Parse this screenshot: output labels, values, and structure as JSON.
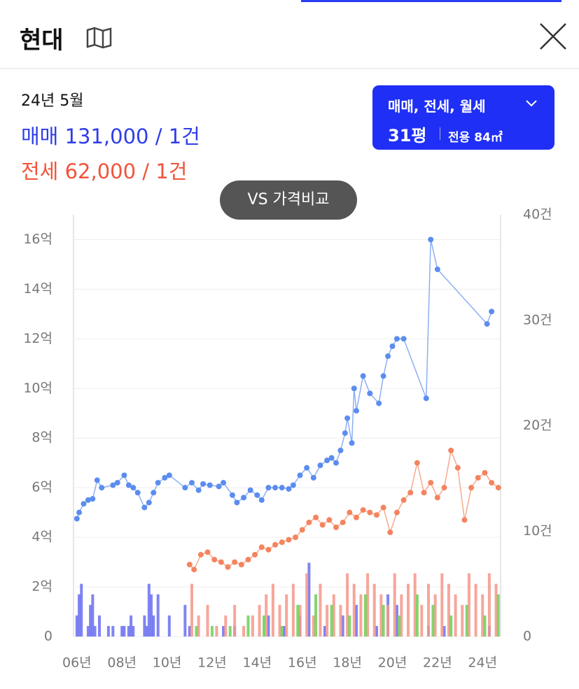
{
  "header": {
    "title": "현대"
  },
  "info": {
    "date": "24년 5월",
    "sale": "매매 131,000 / 1건",
    "jeonse": "전세 62,000 / 1건"
  },
  "filter": {
    "types": "매매, 전세, 월세",
    "size": "31평",
    "area": "전용 84㎡"
  },
  "compare_button": "VS 가격비교",
  "chart_data": {
    "type": "line",
    "xlim": [
      5.85,
      24.8
    ],
    "xticks": [
      {
        "value": 6,
        "label": "06년"
      },
      {
        "value": 8,
        "label": "08년"
      },
      {
        "value": 10,
        "label": "10년"
      },
      {
        "value": 12,
        "label": "12년"
      },
      {
        "value": 14,
        "label": "14년"
      },
      {
        "value": 16,
        "label": "16년"
      },
      {
        "value": 18,
        "label": "18년"
      },
      {
        "value": 20,
        "label": "20년"
      },
      {
        "value": 22,
        "label": "22년"
      },
      {
        "value": 24,
        "label": "24년"
      }
    ],
    "ylim": [
      0,
      17
    ],
    "yticks": [
      0,
      {
        "value": 2,
        "label": "2억"
      },
      {
        "value": 4,
        "label": "4억"
      },
      {
        "value": 6,
        "label": "6억"
      },
      {
        "value": 8,
        "label": "8억"
      },
      {
        "value": 10,
        "label": "10억"
      },
      {
        "value": 12,
        "label": "12억"
      },
      {
        "value": 14,
        "label": "14억"
      },
      {
        "value": 16,
        "label": "16억"
      }
    ],
    "y2lim": [
      0,
      40
    ],
    "y2ticks": [
      0,
      {
        "value": 10,
        "label": "10건"
      },
      {
        "value": 20,
        "label": "20건"
      },
      {
        "value": 30,
        "label": "30건"
      },
      {
        "value": 40,
        "label": "40건"
      }
    ],
    "grid": true,
    "series": [
      {
        "type": "bar",
        "axis": "y2",
        "color": "#6a6ff0",
        "x": [
          6.0,
          6.1,
          6.2,
          6.5,
          6.6,
          6.7,
          6.8,
          7.0,
          7.4,
          7.6,
          8.0,
          8.1,
          8.3,
          8.4,
          8.5,
          9.0,
          9.1,
          9.2,
          9.3,
          9.4,
          9.6,
          10.1,
          10.8,
          11.0,
          12.5,
          13.0,
          14.5,
          15.2,
          15.9,
          16.3,
          17.0,
          17.8,
          18.4,
          19.3,
          19.8,
          20.2,
          21.6,
          22.3,
          24.3
        ],
        "values": [
          2,
          4,
          5,
          1,
          3,
          4,
          1,
          2,
          1,
          1,
          1,
          1,
          1,
          2,
          1,
          2,
          1,
          5,
          4,
          2,
          4,
          2,
          3,
          1,
          1,
          1,
          2,
          1,
          2,
          7,
          1,
          2,
          3,
          1,
          4,
          3,
          1,
          1,
          1
        ]
      },
      {
        "type": "bar",
        "axis": "y2",
        "color": "#f5978a",
        "x": [
          11.1,
          11.4,
          11.8,
          12.2,
          12.6,
          13.0,
          13.4,
          13.8,
          14.1,
          14.4,
          14.7,
          15.0,
          15.3,
          15.6,
          15.9,
          16.2,
          16.5,
          16.8,
          17.1,
          17.4,
          17.7,
          18.0,
          18.3,
          18.6,
          18.9,
          19.2,
          19.5,
          19.8,
          20.1,
          20.4,
          20.7,
          21.0,
          21.3,
          21.6,
          21.9,
          22.2,
          22.5,
          22.8,
          23.1,
          23.4,
          23.7,
          24.0,
          24.3,
          24.6
        ],
        "values": [
          5,
          2,
          3,
          1,
          2,
          3,
          1,
          2,
          3,
          4,
          5,
          3,
          4,
          5,
          3,
          6,
          2,
          5,
          3,
          4,
          3,
          6,
          5,
          4,
          6,
          5,
          4,
          3,
          6,
          4,
          5,
          6,
          3,
          5,
          4,
          6,
          5,
          4,
          3,
          6,
          5,
          4,
          6,
          5
        ]
      },
      {
        "type": "bar",
        "axis": "y2",
        "color": "#6ccf55",
        "x": [
          11.3,
          12.0,
          12.8,
          13.6,
          14.3,
          15.1,
          15.8,
          16.6,
          17.3,
          18.1,
          18.8,
          19.6,
          20.3,
          21.1,
          21.8,
          22.6,
          23.3,
          24.1,
          24.7
        ],
        "values": [
          1,
          1,
          1,
          2,
          2,
          1,
          3,
          4,
          3,
          2,
          4,
          3,
          2,
          4,
          3,
          2,
          3,
          2,
          4
        ]
      },
      {
        "type": "line",
        "color": "#5b8def",
        "x": [
          6.0,
          6.1,
          6.3,
          6.5,
          6.7,
          6.9,
          7.1,
          7.6,
          7.8,
          8.1,
          8.3,
          8.5,
          8.7,
          9.0,
          9.2,
          9.4,
          9.6,
          9.9,
          10.1,
          10.8,
          11.1,
          11.4,
          11.6,
          11.9,
          12.3,
          12.5,
          12.9,
          13.1,
          13.4,
          13.7,
          14.0,
          14.2,
          14.5,
          14.8,
          15.1,
          15.4,
          15.6,
          15.9,
          16.2,
          16.5,
          16.8,
          17.1,
          17.3,
          17.5,
          17.7,
          17.9,
          18.0,
          18.2,
          18.3,
          18.4,
          18.7,
          19.0,
          19.4,
          19.6,
          19.8,
          20.0,
          20.2,
          20.5,
          21.5,
          21.7,
          22.0,
          24.2,
          24.4
        ],
        "values": [
          4.75,
          5.0,
          5.35,
          5.5,
          5.55,
          6.3,
          6.0,
          6.1,
          6.2,
          6.5,
          6.1,
          6.0,
          5.8,
          5.2,
          5.4,
          5.8,
          6.2,
          6.4,
          6.5,
          6.0,
          6.2,
          5.9,
          6.15,
          6.1,
          6.05,
          6.2,
          5.7,
          5.4,
          5.6,
          5.9,
          5.7,
          5.5,
          6.0,
          6.0,
          6.0,
          5.95,
          6.1,
          6.5,
          6.8,
          6.4,
          6.9,
          7.1,
          7.2,
          7.0,
          7.5,
          8.2,
          8.8,
          7.8,
          10.0,
          9.1,
          10.5,
          9.8,
          9.4,
          10.5,
          11.3,
          11.7,
          12.0,
          12.0,
          9.6,
          16.0,
          14.8,
          12.6,
          13.1
        ]
      },
      {
        "type": "line",
        "color": "#f4845f",
        "x": [
          11.0,
          11.2,
          11.5,
          11.8,
          12.1,
          12.4,
          12.7,
          13.0,
          13.3,
          13.6,
          13.9,
          14.2,
          14.5,
          14.8,
          15.1,
          15.4,
          15.7,
          16.0,
          16.3,
          16.6,
          16.9,
          17.2,
          17.5,
          17.8,
          18.1,
          18.4,
          18.7,
          19.0,
          19.3,
          19.6,
          19.9,
          20.2,
          20.5,
          20.8,
          21.1,
          21.4,
          21.7,
          22.0,
          22.3,
          22.6,
          22.9,
          23.2,
          23.5,
          23.8,
          24.1,
          24.4,
          24.7
        ],
        "values": [
          2.9,
          2.7,
          3.3,
          3.4,
          3.1,
          3.0,
          2.8,
          3.0,
          2.9,
          3.1,
          3.3,
          3.6,
          3.5,
          3.7,
          3.8,
          3.9,
          4.0,
          4.3,
          4.6,
          4.8,
          4.5,
          4.7,
          4.4,
          4.6,
          5.0,
          4.8,
          5.1,
          5.0,
          4.9,
          5.2,
          4.2,
          5.0,
          5.5,
          5.8,
          7.0,
          5.8,
          6.2,
          5.6,
          6.0,
          7.5,
          6.8,
          4.7,
          6.0,
          6.4,
          6.6,
          6.2,
          6.0
        ]
      }
    ]
  }
}
